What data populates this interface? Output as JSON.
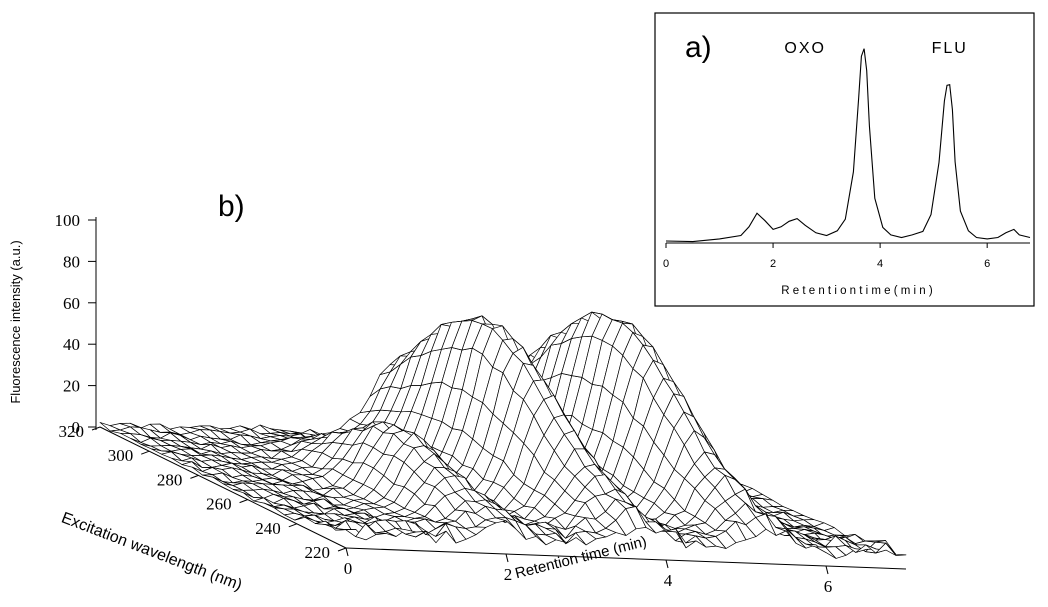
{
  "chart_data": [
    {
      "panel": "a)",
      "type": "line",
      "xlabel": "R e t e n t i o n   t i m e   ( m i n )",
      "ylabel": "",
      "xlim": [
        0,
        6.8
      ],
      "ylim": [
        0,
        100
      ],
      "x_ticks": [
        "0",
        "2",
        "4",
        "6"
      ],
      "x_tick_values": [
        0,
        2,
        4,
        6
      ],
      "grid": false,
      "annotations": [
        {
          "text": "OXO",
          "x": 2.6
        },
        {
          "text": "FLU",
          "x": 5.3
        }
      ],
      "series": [
        {
          "x": [
            0,
            0.5,
            1.0,
            1.4,
            1.55,
            1.7,
            1.85,
            2.0,
            2.15,
            2.3,
            2.45,
            2.6,
            2.8,
            3.0,
            3.2,
            3.35,
            3.5,
            3.6,
            3.65,
            3.7,
            3.75,
            3.8,
            3.9,
            4.05,
            4.2,
            4.4,
            4.6,
            4.8,
            4.95,
            5.1,
            5.2,
            5.25,
            5.3,
            5.35,
            5.4,
            5.5,
            5.65,
            5.8,
            6.0,
            6.2,
            6.35,
            6.5,
            6.6,
            6.8
          ],
          "y": [
            1,
            1,
            2,
            4,
            8,
            15,
            11,
            7,
            8,
            11,
            12,
            9,
            5,
            4,
            6,
            12,
            35,
            72,
            92,
            96,
            85,
            58,
            22,
            8,
            4,
            3,
            4,
            6,
            14,
            40,
            70,
            78,
            78,
            66,
            40,
            16,
            6,
            3,
            2,
            3,
            5,
            7,
            4,
            3
          ]
        }
      ]
    },
    {
      "panel": "b)",
      "type": "surface",
      "zlabel": "Fluorescence intensity (a.u.)",
      "xlabel": "Retention time (min)",
      "ylabel": "Excitation wavelength (nm)",
      "z_ticks": [
        "0",
        "20",
        "40",
        "60",
        "80",
        "100"
      ],
      "z_tick_values": [
        0,
        20,
        40,
        60,
        80,
        100
      ],
      "x_ticks": [
        "0",
        "2",
        "4",
        "6"
      ],
      "x_tick_values": [
        0,
        2,
        4,
        6
      ],
      "y_ticks": [
        "220",
        "240",
        "260",
        "280",
        "300",
        "320"
      ],
      "y_tick_values": [
        220,
        240,
        260,
        280,
        300,
        320
      ],
      "xlim": [
        0,
        7
      ],
      "ylim": [
        220,
        320
      ],
      "zlim": [
        0,
        100
      ],
      "peaks": [
        {
          "retention_time": 2.0,
          "wavelength": 262,
          "max_intensity": 35
        },
        {
          "retention_time": 3.7,
          "wavelength": 282,
          "max_intensity": 78
        },
        {
          "retention_time": 5.3,
          "wavelength": 282,
          "max_intensity": 82
        }
      ]
    }
  ]
}
